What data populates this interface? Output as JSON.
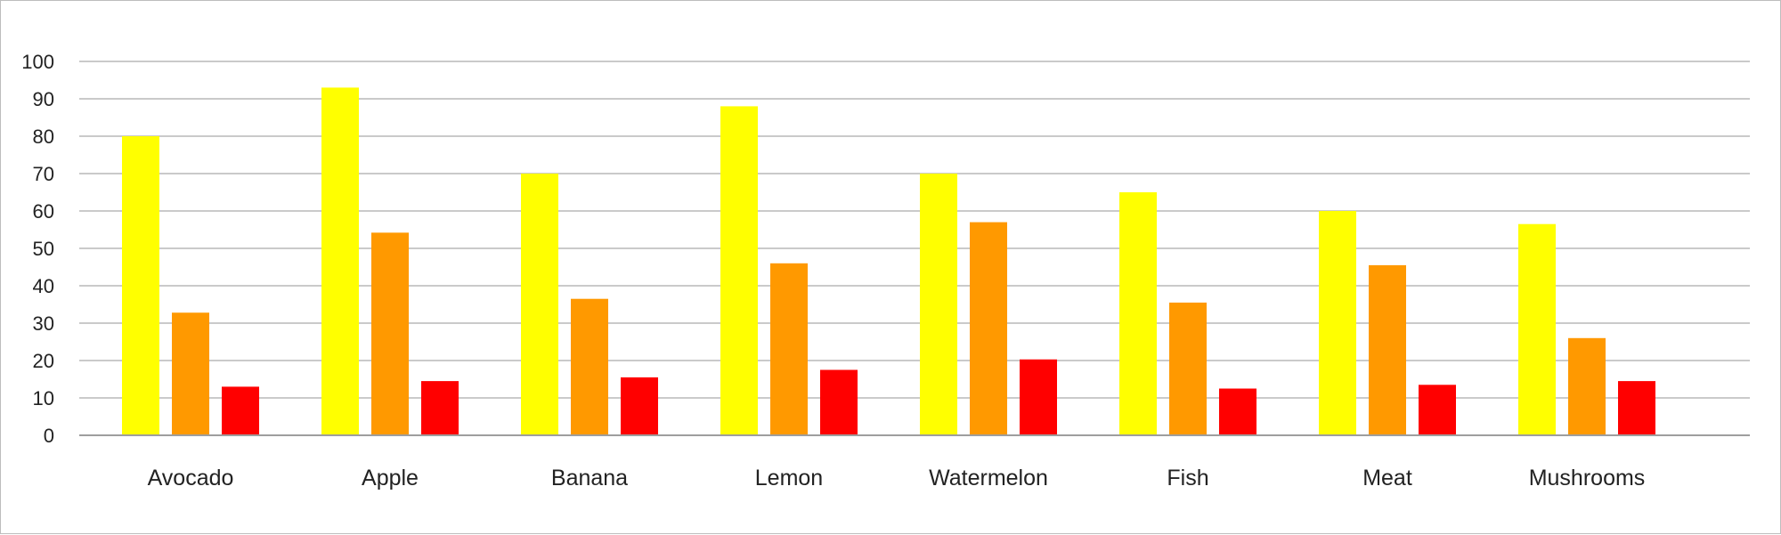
{
  "chart_data": {
    "type": "bar",
    "categories": [
      "Avocado",
      "Apple",
      "Banana",
      "Lemon",
      "Watermelon",
      "Fish",
      "Meat",
      "Mushrooms"
    ],
    "series": [
      {
        "color": "#ffff00",
        "values": [
          80,
          93,
          70,
          88,
          70,
          65,
          60,
          56.5
        ]
      },
      {
        "color": "#ff9900",
        "values": [
          32.8,
          54.2,
          36.5,
          46,
          57,
          35.5,
          45.5,
          26
        ]
      },
      {
        "color": "#ff0000",
        "values": [
          13,
          14.5,
          15.5,
          17.5,
          20.3,
          12.5,
          13.5,
          14.5
        ]
      }
    ],
    "yticks": [
      "0",
      "10",
      "20",
      "30",
      "40",
      "50",
      "60",
      "70",
      "80",
      "90",
      "100"
    ],
    "ylim": [
      0,
      100
    ],
    "grid": true,
    "gridline_color": "#b8b8b8",
    "axis_color": "#9e9e9e",
    "title": "",
    "xlabel": "",
    "ylabel": ""
  }
}
